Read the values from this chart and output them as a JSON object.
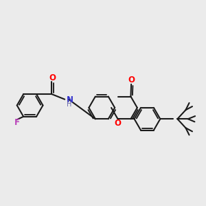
{
  "background_color": "#ebebeb",
  "bond_color": "#1a1a1a",
  "bond_width": 1.5,
  "atom_colors": {
    "O": "#ff0000",
    "N": "#3333cc",
    "F": "#bb44bb",
    "H": "#6666aa",
    "C": "#1a1a1a"
  },
  "font_size_atom": 8.5,
  "font_size_h": 7.0
}
